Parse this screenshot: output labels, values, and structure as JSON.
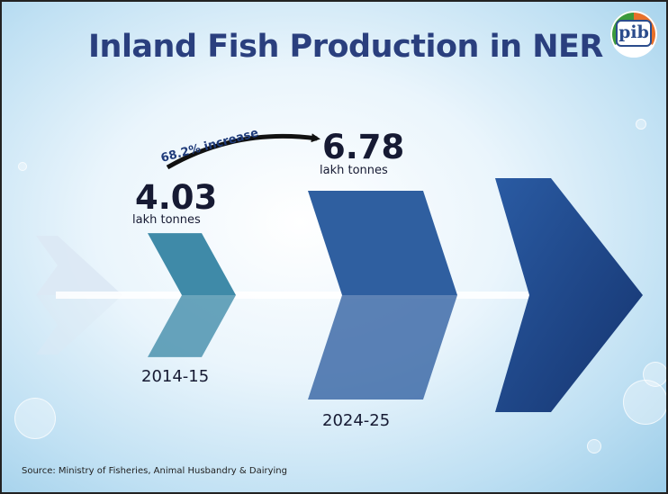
{
  "title": "Inland Fish Production in NER",
  "logo_text": "pib",
  "chart_data": {
    "type": "bar",
    "title": "Inland Fish Production in NER",
    "categories": [
      "2014-15",
      "2024-25"
    ],
    "values": [
      4.03,
      6.78
    ],
    "value_labels": [
      "4.03",
      "6.78"
    ],
    "unit": "lakh tonnes",
    "annotation": "68.2% increase"
  },
  "source": "Source: Ministry of Fisheries, Animal Husbandry & Dairying",
  "colors": {
    "title": "#2a3f7e",
    "bar_2014": "#3f8aa8",
    "bar_2024": "#2f5fa0",
    "big_arrow": "#1f4b8e"
  }
}
